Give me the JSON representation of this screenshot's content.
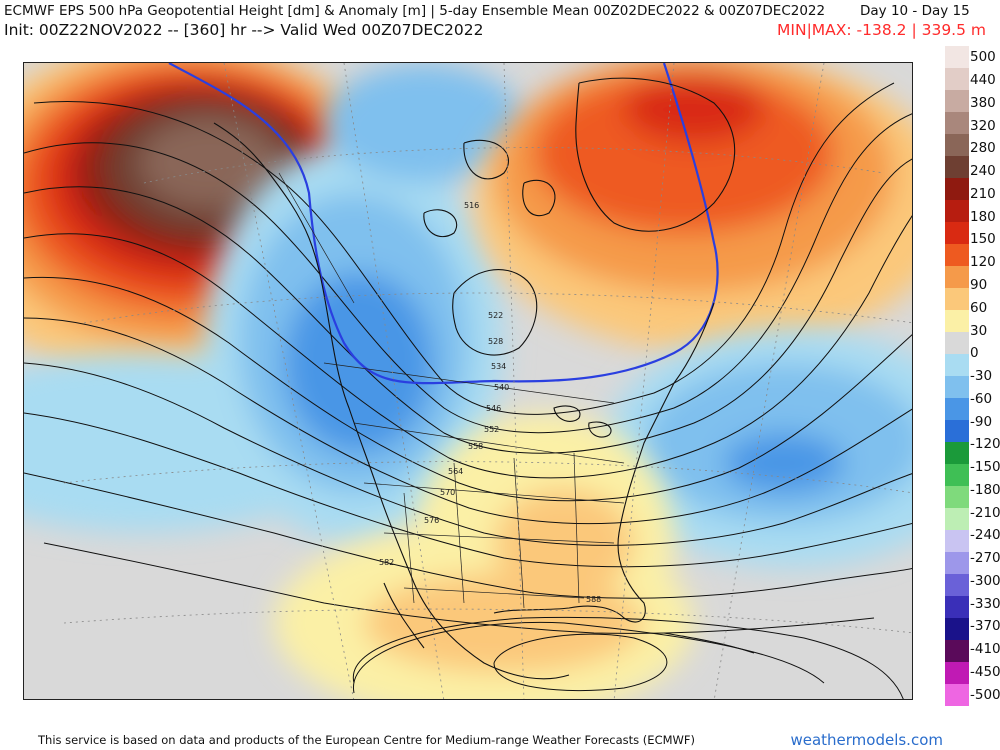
{
  "header": {
    "title": "ECMWF EPS 500 hPa Geopotential Height [dm] & Anomaly [m] | 5-day Ensemble Mean 00Z02DEC2022 & 00Z07DEC2022",
    "day_range": "Day 10 - Day 15",
    "init_line": "Init: 00Z22NOV2022 -- [360] hr --> Valid Wed 00Z07DEC2022",
    "minmax": "MIN|MAX: -138.2 | 339.5 m"
  },
  "colorbar": {
    "labels": [
      "500",
      "440",
      "380",
      "320",
      "280",
      "240",
      "210",
      "180",
      "150",
      "120",
      "90",
      "60",
      "30",
      "0",
      "-30",
      "-60",
      "-90",
      "-120",
      "-150",
      "-180",
      "-210",
      "-240",
      "-270",
      "-300",
      "-330",
      "-370",
      "-410",
      "-450",
      "-500"
    ],
    "colors": [
      "#f2e6e3",
      "#e2cdc7",
      "#c8aba2",
      "#a9877c",
      "#8a6658",
      "#6e3f32",
      "#8f1a10",
      "#b71d10",
      "#d92a12",
      "#ee5a20",
      "#f59a4a",
      "#fbc87a",
      "#fbf0a6",
      "#d9d9d9",
      "#a9dcf2",
      "#7fc0ee",
      "#4a96e6",
      "#2a6fd8",
      "#1b9a3a",
      "#3fbf55",
      "#7fda7c",
      "#bdeeb4",
      "#c9c4f2",
      "#9d97ea",
      "#6a61d8",
      "#3a2fb8",
      "#1a128a",
      "#5a0a5a",
      "#c01ab4",
      "#ee66e2"
    ]
  },
  "map_labels": {
    "h516": "516",
    "h522": "522",
    "h528": "528",
    "h534": "534",
    "h540": "540",
    "h546": "546",
    "h552": "552",
    "h558": "558",
    "h564": "564",
    "h570": "570",
    "h576": "576",
    "h582": "582",
    "h588": "588"
  },
  "footer": {
    "disclaimer": "This service is based on data and products of the European Centre for Medium-range Weather Forecasts (ECMWF)",
    "brand": "weathermodels.com"
  }
}
